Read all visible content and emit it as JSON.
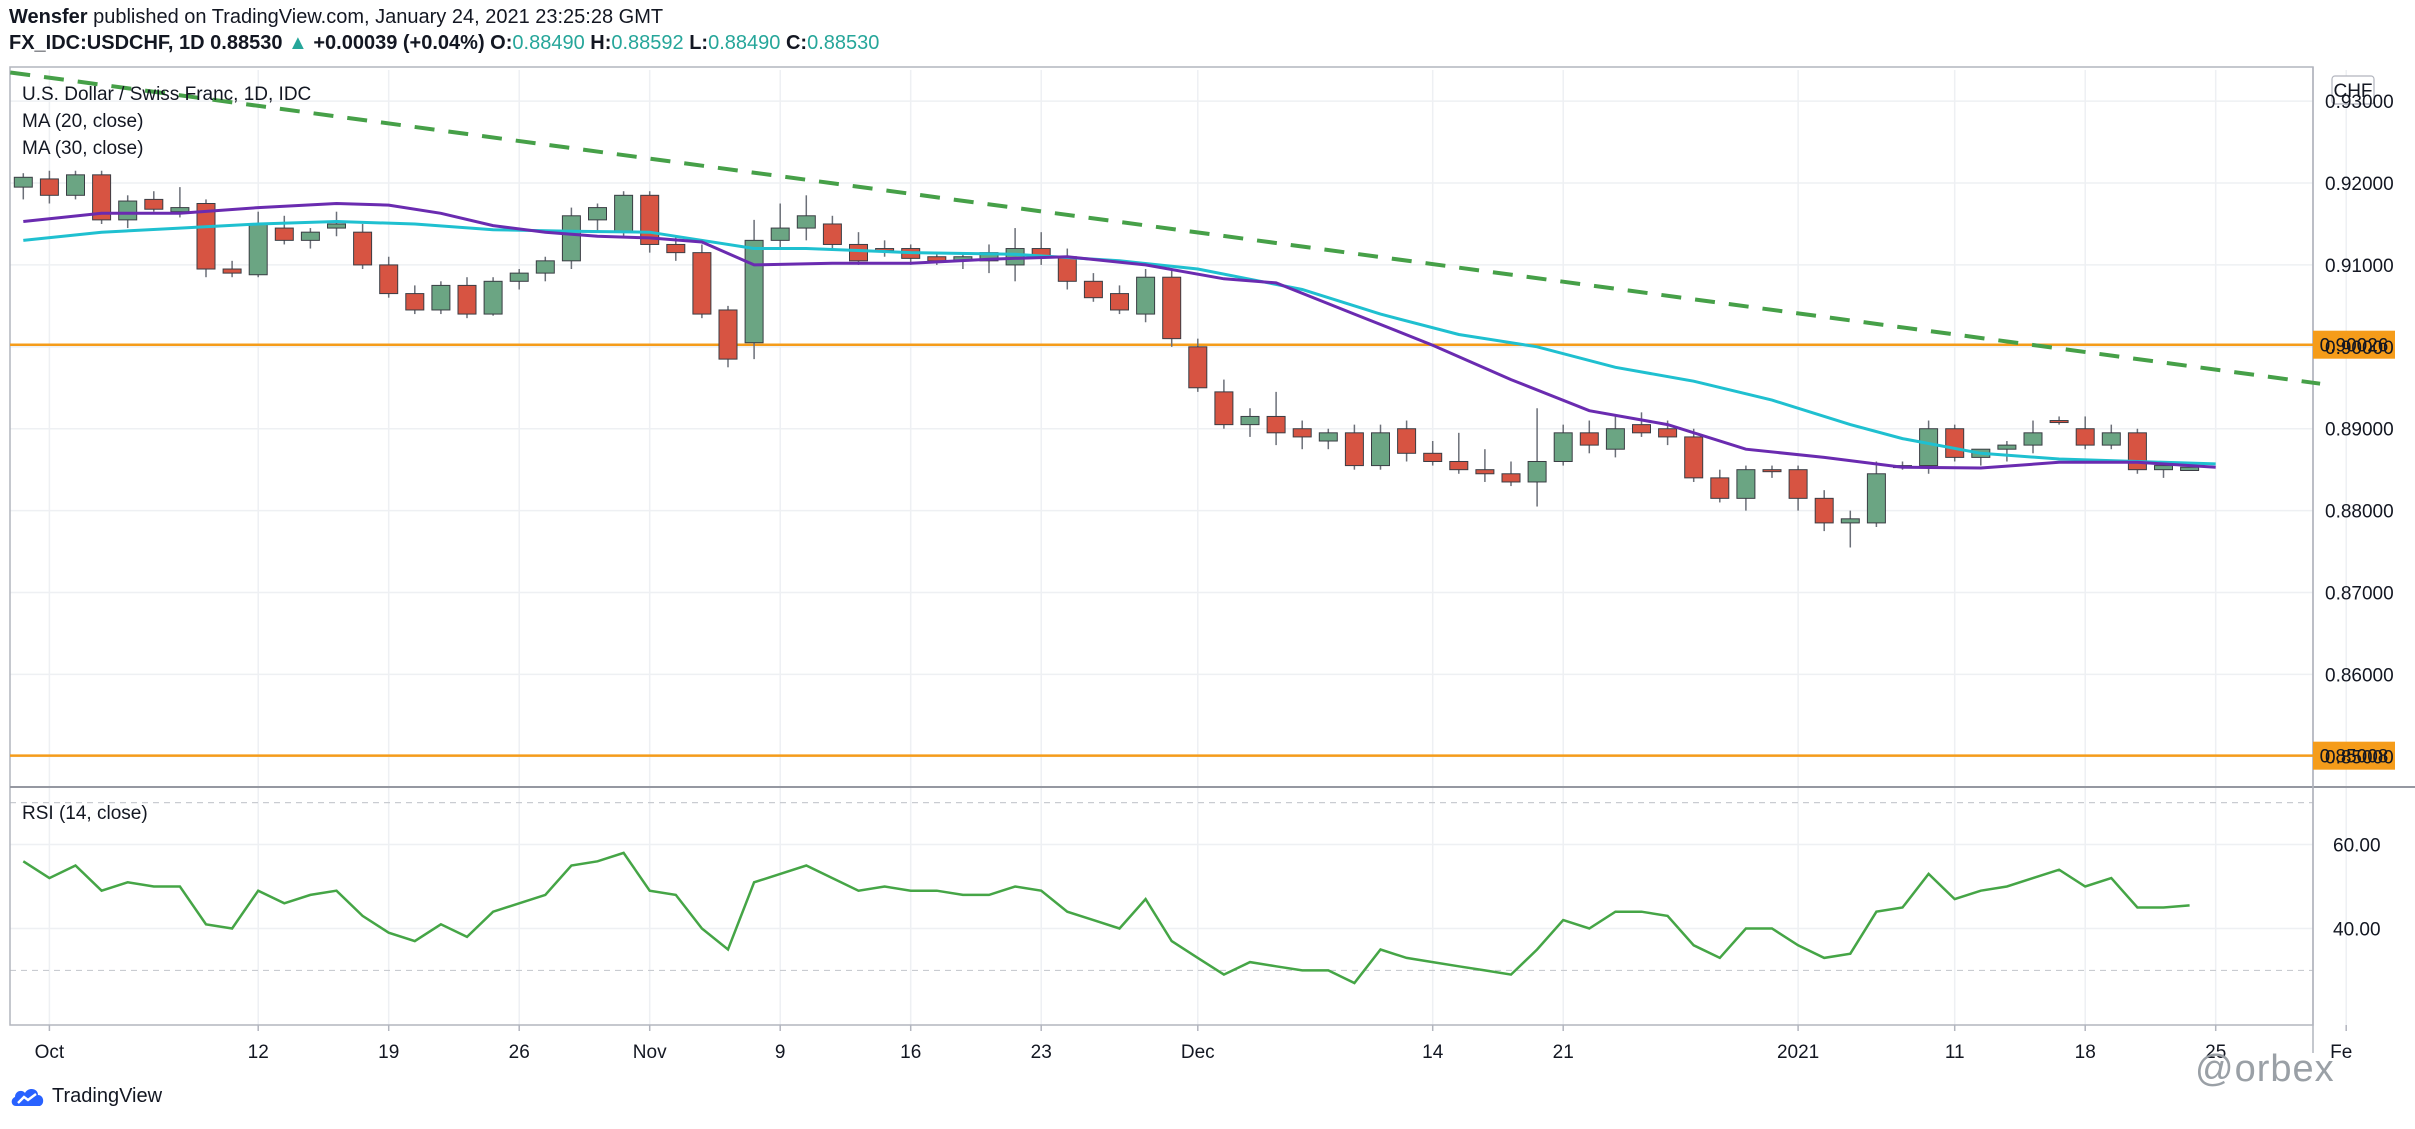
{
  "header": {
    "author": "Wensfer",
    "published_text": " published on TradingView.com, January 24, 2021 23:25:28 GMT",
    "symbol": "FX_IDC:USDCHF, 1D",
    "last": "0.88530",
    "change_arrow": "▲",
    "change": "+0.00039 (+0.04%)",
    "o_label": "O:",
    "o": "0.88490",
    "h_label": "H:",
    "h": "0.88592",
    "l_label": "L:",
    "l": "0.88490",
    "c_label": "C:",
    "c": "0.88530"
  },
  "legend": {
    "title": "U.S. Dollar / Swiss Franc, 1D, IDC",
    "ma20": "MA (20, close)",
    "ma30": "MA (30, close)",
    "rsi": "RSI (14, close)"
  },
  "footer": {
    "logo_text": "TradingView",
    "watermark": "@orbex"
  },
  "colors": {
    "up": "#6ba583",
    "down": "#d75442",
    "ma20": "#6a2bb0",
    "ma30": "#1fc0d0",
    "trend": "#46a048",
    "level": "#f59c1a",
    "rsi": "#45a546"
  },
  "chart_data": [
    {
      "type": "candlestick",
      "currency_label": "CHF",
      "y_ticks": [
        "0.93000",
        "0.92000",
        "0.91000",
        "0.90000",
        "0.89000",
        "0.88000",
        "0.87000",
        "0.86000",
        "0.85000"
      ],
      "ylim": [
        0.8465,
        0.9338
      ],
      "x_ticks": [
        {
          "label": "Oct",
          "i": 1
        },
        {
          "label": "12",
          "i": 9
        },
        {
          "label": "19",
          "i": 14
        },
        {
          "label": "26",
          "i": 19
        },
        {
          "label": "Nov",
          "i": 24
        },
        {
          "label": "9",
          "i": 29
        },
        {
          "label": "16",
          "i": 34
        },
        {
          "label": "23",
          "i": 39
        },
        {
          "label": "Dec",
          "i": 45
        },
        {
          "label": "14",
          "i": 54
        },
        {
          "label": "21",
          "i": 59
        },
        {
          "label": "2021",
          "i": 68
        },
        {
          "label": "11",
          "i": 74
        },
        {
          "label": "18",
          "i": 79
        },
        {
          "label": "25",
          "i": 84
        },
        {
          "label": "Fe",
          "i": 89
        }
      ],
      "ohlc": [
        [
          0.9195,
          0.9212,
          0.918,
          0.9207
        ],
        [
          0.9205,
          0.9215,
          0.9175,
          0.9185
        ],
        [
          0.9185,
          0.9215,
          0.918,
          0.921
        ],
        [
          0.921,
          0.9215,
          0.915,
          0.9155
        ],
        [
          0.9155,
          0.9185,
          0.9145,
          0.9178
        ],
        [
          0.918,
          0.919,
          0.9165,
          0.9168
        ],
        [
          0.9165,
          0.9195,
          0.9158,
          0.917
        ],
        [
          0.9175,
          0.918,
          0.9085,
          0.9095
        ],
        [
          0.9095,
          0.9105,
          0.9085,
          0.909
        ],
        [
          0.9088,
          0.9165,
          0.9085,
          0.915
        ],
        [
          0.9145,
          0.916,
          0.9125,
          0.913
        ],
        [
          0.913,
          0.9145,
          0.912,
          0.914
        ],
        [
          0.9145,
          0.9165,
          0.9135,
          0.915
        ],
        [
          0.914,
          0.915,
          0.9095,
          0.91
        ],
        [
          0.91,
          0.911,
          0.906,
          0.9065
        ],
        [
          0.9065,
          0.9075,
          0.904,
          0.9045
        ],
        [
          0.9045,
          0.908,
          0.904,
          0.9075
        ],
        [
          0.9075,
          0.9085,
          0.9035,
          0.904
        ],
        [
          0.904,
          0.9085,
          0.9038,
          0.908
        ],
        [
          0.908,
          0.9095,
          0.907,
          0.909
        ],
        [
          0.909,
          0.911,
          0.908,
          0.9105
        ],
        [
          0.9105,
          0.917,
          0.9095,
          0.916
        ],
        [
          0.9155,
          0.9175,
          0.914,
          0.917
        ],
        [
          0.914,
          0.919,
          0.9135,
          0.9185
        ],
        [
          0.9185,
          0.919,
          0.9115,
          0.9125
        ],
        [
          0.9125,
          0.9135,
          0.9105,
          0.9115
        ],
        [
          0.9115,
          0.9125,
          0.9035,
          0.904
        ],
        [
          0.9045,
          0.905,
          0.8975,
          0.8985
        ],
        [
          0.9005,
          0.9155,
          0.8985,
          0.913
        ],
        [
          0.913,
          0.9175,
          0.912,
          0.9145
        ],
        [
          0.9145,
          0.9185,
          0.913,
          0.916
        ],
        [
          0.915,
          0.916,
          0.912,
          0.9125
        ],
        [
          0.9125,
          0.914,
          0.91,
          0.9105
        ],
        [
          0.912,
          0.913,
          0.911,
          0.9118
        ],
        [
          0.912,
          0.9125,
          0.91,
          0.9108
        ],
        [
          0.911,
          0.9115,
          0.91,
          0.9105
        ],
        [
          0.9105,
          0.9115,
          0.9095,
          0.911
        ],
        [
          0.9105,
          0.9125,
          0.909,
          0.9115
        ],
        [
          0.91,
          0.9145,
          0.908,
          0.912
        ],
        [
          0.912,
          0.914,
          0.91,
          0.911
        ],
        [
          0.911,
          0.912,
          0.907,
          0.908
        ],
        [
          0.908,
          0.909,
          0.9055,
          0.906
        ],
        [
          0.9065,
          0.9075,
          0.904,
          0.9045
        ],
        [
          0.904,
          0.9095,
          0.903,
          0.9085
        ],
        [
          0.9085,
          0.9095,
          0.9,
          0.901
        ],
        [
          0.9,
          0.901,
          0.8945,
          0.895
        ],
        [
          0.8945,
          0.896,
          0.89,
          0.8905
        ],
        [
          0.8905,
          0.8925,
          0.889,
          0.8915
        ],
        [
          0.8915,
          0.8945,
          0.888,
          0.8895
        ],
        [
          0.89,
          0.891,
          0.8875,
          0.889
        ],
        [
          0.8885,
          0.89,
          0.8875,
          0.8895
        ],
        [
          0.8895,
          0.8905,
          0.885,
          0.8855
        ],
        [
          0.8855,
          0.8905,
          0.885,
          0.8895
        ],
        [
          0.89,
          0.891,
          0.886,
          0.887
        ],
        [
          0.887,
          0.8885,
          0.8855,
          0.886
        ],
        [
          0.886,
          0.8895,
          0.8845,
          0.885
        ],
        [
          0.885,
          0.8875,
          0.8835,
          0.8845
        ],
        [
          0.8845,
          0.886,
          0.883,
          0.8835
        ],
        [
          0.8835,
          0.8925,
          0.8805,
          0.886
        ],
        [
          0.886,
          0.8905,
          0.8855,
          0.8895
        ],
        [
          0.8895,
          0.891,
          0.887,
          0.888
        ],
        [
          0.8875,
          0.8915,
          0.8865,
          0.89
        ],
        [
          0.8905,
          0.892,
          0.889,
          0.8895
        ],
        [
          0.89,
          0.891,
          0.888,
          0.889
        ],
        [
          0.889,
          0.89,
          0.8835,
          0.884
        ],
        [
          0.884,
          0.885,
          0.881,
          0.8815
        ],
        [
          0.8815,
          0.8855,
          0.88,
          0.885
        ],
        [
          0.885,
          0.8855,
          0.884,
          0.8848
        ],
        [
          0.885,
          0.8855,
          0.88,
          0.8815
        ],
        [
          0.8815,
          0.8825,
          0.8775,
          0.8785
        ],
        [
          0.8785,
          0.88,
          0.8755,
          0.879
        ],
        [
          0.8785,
          0.886,
          0.878,
          0.8845
        ],
        [
          0.8855,
          0.886,
          0.885,
          0.8855
        ],
        [
          0.8855,
          0.891,
          0.8845,
          0.89
        ],
        [
          0.89,
          0.8905,
          0.886,
          0.8865
        ],
        [
          0.8865,
          0.8875,
          0.8855,
          0.8875
        ],
        [
          0.8875,
          0.8885,
          0.886,
          0.888
        ],
        [
          0.888,
          0.891,
          0.887,
          0.8895
        ],
        [
          0.891,
          0.8915,
          0.8905,
          0.8908
        ],
        [
          0.89,
          0.8915,
          0.8875,
          0.888
        ],
        [
          0.888,
          0.8905,
          0.8875,
          0.8895
        ],
        [
          0.8895,
          0.89,
          0.8845,
          0.885
        ],
        [
          0.885,
          0.886,
          0.884,
          0.8855
        ],
        [
          0.8849,
          0.8859,
          0.8849,
          0.8853
        ]
      ],
      "ma20": [
        [
          0,
          0.9153
        ],
        [
          3,
          0.9163
        ],
        [
          6,
          0.9163
        ],
        [
          9,
          0.917
        ],
        [
          12,
          0.9175
        ],
        [
          14,
          0.9173
        ],
        [
          16,
          0.9163
        ],
        [
          18,
          0.9148
        ],
        [
          20,
          0.914
        ],
        [
          22,
          0.9135
        ],
        [
          24,
          0.9133
        ],
        [
          26,
          0.9128
        ],
        [
          28,
          0.91
        ],
        [
          31,
          0.9102
        ],
        [
          34,
          0.9102
        ],
        [
          37,
          0.9107
        ],
        [
          40,
          0.911
        ],
        [
          43,
          0.91
        ],
        [
          46,
          0.9083
        ],
        [
          48,
          0.9078
        ],
        [
          51,
          0.904
        ],
        [
          54,
          0.9002
        ],
        [
          57,
          0.896
        ],
        [
          60,
          0.8922
        ],
        [
          63,
          0.8905
        ],
        [
          66,
          0.8875
        ],
        [
          69,
          0.8865
        ],
        [
          72,
          0.8853
        ],
        [
          75,
          0.8852
        ],
        [
          78,
          0.8859
        ],
        [
          81,
          0.8859
        ],
        [
          84,
          0.8853
        ]
      ],
      "ma30": [
        [
          0,
          0.913
        ],
        [
          3,
          0.914
        ],
        [
          6,
          0.9145
        ],
        [
          9,
          0.915
        ],
        [
          12,
          0.9153
        ],
        [
          15,
          0.915
        ],
        [
          18,
          0.9143
        ],
        [
          21,
          0.9141
        ],
        [
          24,
          0.914
        ],
        [
          25,
          0.9135
        ],
        [
          28,
          0.912
        ],
        [
          30,
          0.912
        ],
        [
          34,
          0.9115
        ],
        [
          38,
          0.9113
        ],
        [
          42,
          0.9105
        ],
        [
          45,
          0.9095
        ],
        [
          49,
          0.907
        ],
        [
          52,
          0.904
        ],
        [
          55,
          0.9015
        ],
        [
          58,
          0.9
        ],
        [
          61,
          0.8975
        ],
        [
          64,
          0.8958
        ],
        [
          67,
          0.8935
        ],
        [
          70,
          0.8905
        ],
        [
          72,
          0.8888
        ],
        [
          75,
          0.887
        ],
        [
          78,
          0.8863
        ],
        [
          81,
          0.886
        ],
        [
          84,
          0.8857
        ]
      ],
      "trendline": {
        "from": [
          0,
          0.9335
        ],
        "to": [
          88,
          0.8955
        ]
      },
      "levels": [
        {
          "value": 0.90026,
          "label": "0.90026"
        },
        {
          "value": 0.85008,
          "label": "0.85008"
        }
      ]
    },
    {
      "type": "line",
      "y_ticks": [
        "60.00",
        "40.00"
      ],
      "ylim": [
        17,
        73
      ],
      "bands": [
        70,
        30
      ],
      "values": [
        56,
        52,
        55,
        49,
        51,
        50,
        50,
        41,
        40,
        49,
        46,
        48,
        49,
        43,
        39,
        37,
        41,
        38,
        44,
        46,
        48,
        55,
        56,
        58,
        49,
        48,
        40,
        35,
        51,
        53,
        55,
        52,
        49,
        50,
        49,
        49,
        48,
        48,
        50,
        49,
        44,
        42,
        40,
        47,
        37,
        33,
        29,
        32,
        31,
        30,
        30,
        27,
        35,
        33,
        32,
        31,
        30,
        29,
        35,
        42,
        40,
        44,
        44,
        43,
        36,
        33,
        40,
        40,
        36,
        33,
        34,
        44,
        45,
        53,
        47,
        49,
        50,
        52,
        54,
        50,
        52,
        45,
        45,
        45.5
      ]
    }
  ]
}
